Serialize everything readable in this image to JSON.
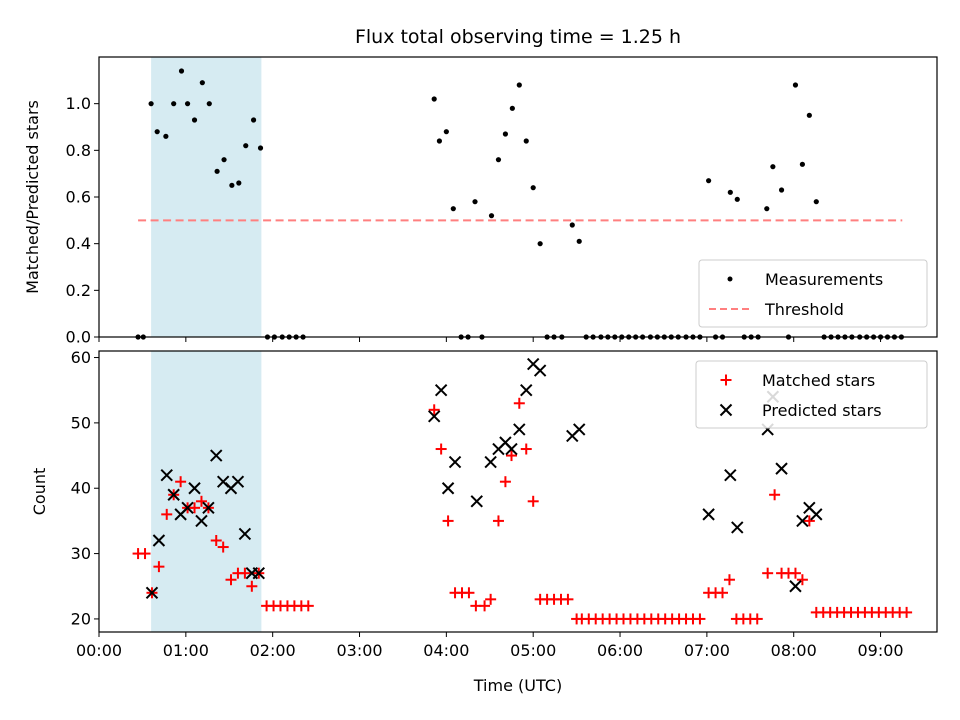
{
  "title": "Flux total observing time = 1.25 h",
  "colors": {
    "measurement": "#000000",
    "threshold": "#ff7f7f",
    "matched": "#ff0000",
    "predicted": "#000000",
    "span_fill": "#add8e6"
  },
  "chart_data": [
    {
      "type": "scatter",
      "ylabel": "Matched/Predicted stars",
      "xlabel": "",
      "xlim": [
        0,
        9.65
      ],
      "ylim": [
        0,
        1.2
      ],
      "yticks": [
        0,
        0.2,
        0.4,
        0.6,
        0.8,
        1.0
      ],
      "ytick_labels": [
        "0.0",
        "0.2",
        "0.4",
        "0.6",
        "0.8",
        "1.0"
      ],
      "shaded_span_x": [
        0.6,
        1.87
      ],
      "legend_position": "lower-right",
      "legend": [
        {
          "label": "Measurements",
          "marker": "dot"
        },
        {
          "label": "Threshold",
          "marker": "dashed-line"
        }
      ],
      "threshold": {
        "y": 0.5,
        "x_range": [
          0.45,
          9.25
        ]
      },
      "measurements": {
        "x": [
          0.45,
          0.51,
          0.6,
          0.67,
          0.77,
          0.86,
          0.95,
          1.02,
          1.1,
          1.19,
          1.27,
          1.36,
          1.44,
          1.53,
          1.61,
          1.69,
          1.78,
          1.86,
          1.94,
          2.02,
          2.11,
          2.19,
          2.27,
          2.35,
          3.86,
          3.92,
          4.0,
          4.08,
          4.17,
          4.25,
          4.33,
          4.41,
          4.52,
          4.6,
          4.68,
          4.76,
          4.84,
          4.92,
          5.0,
          5.08,
          5.16,
          5.24,
          5.33,
          5.45,
          5.53,
          5.61,
          5.69,
          5.78,
          5.86,
          5.94,
          6.02,
          6.1,
          6.18,
          6.26,
          6.35,
          6.43,
          6.51,
          6.59,
          6.67,
          6.76,
          6.84,
          6.92,
          7.02,
          7.1,
          7.18,
          7.27,
          7.35,
          7.43,
          7.51,
          7.59,
          7.69,
          7.76,
          7.86,
          7.94,
          8.02,
          8.1,
          8.18,
          8.26,
          8.35,
          8.43,
          8.51,
          8.59,
          8.67,
          8.76,
          8.84,
          8.92,
          9.0,
          9.08,
          9.16,
          9.24
        ],
        "y": [
          0,
          0,
          1.0,
          0.88,
          0.86,
          1.0,
          1.14,
          1.0,
          0.93,
          1.09,
          1.0,
          0.71,
          0.76,
          0.65,
          0.66,
          0.82,
          0.93,
          0.81,
          0,
          0,
          0,
          0,
          0,
          0,
          1.02,
          0.84,
          0.88,
          0.55,
          0,
          0,
          0.58,
          0,
          0.52,
          0.76,
          0.87,
          0.98,
          1.08,
          0.84,
          0.64,
          0.4,
          0,
          0,
          0,
          0.48,
          0.41,
          0,
          0,
          0,
          0,
          0,
          0,
          0,
          0,
          0,
          0,
          0,
          0,
          0,
          0,
          0,
          0,
          0,
          0.67,
          0,
          0,
          0.62,
          0.59,
          0,
          0,
          0,
          0.55,
          0.73,
          0.63,
          0,
          1.08,
          0.74,
          0.95,
          0.58,
          0,
          0,
          0,
          0,
          0,
          0,
          0,
          0,
          0,
          0,
          0,
          0
        ]
      }
    },
    {
      "type": "scatter",
      "ylabel": "Count",
      "xlabel": "Time (UTC)",
      "xlim": [
        0,
        9.65
      ],
      "ylim": [
        18,
        61
      ],
      "yticks": [
        20,
        30,
        40,
        50,
        60
      ],
      "ytick_labels": [
        "20",
        "30",
        "40",
        "50",
        "60"
      ],
      "xticks": [
        0,
        1,
        2,
        3,
        4,
        5,
        6,
        7,
        8,
        9
      ],
      "xtick_labels": [
        "00:00",
        "01:00",
        "02:00",
        "03:00",
        "04:00",
        "05:00",
        "06:00",
        "07:00",
        "08:00",
        "09:00"
      ],
      "shaded_span_x": [
        0.6,
        1.87
      ],
      "legend_position": "upper-right",
      "series": [
        {
          "name": "Matched stars",
          "marker": "plus",
          "x": [
            0.45,
            0.53,
            0.61,
            0.69,
            0.78,
            0.86,
            0.94,
            1.02,
            1.1,
            1.18,
            1.26,
            1.35,
            1.43,
            1.52,
            1.6,
            1.68,
            1.76,
            1.84,
            1.93,
            2.01,
            2.09,
            2.17,
            2.25,
            2.33,
            2.41,
            3.86,
            3.94,
            4.02,
            4.1,
            4.18,
            4.26,
            4.34,
            4.44,
            4.51,
            4.6,
            4.68,
            4.75,
            4.84,
            4.92,
            5.0,
            5.08,
            5.16,
            5.24,
            5.32,
            5.4,
            5.5,
            5.56,
            5.64,
            5.72,
            5.8,
            5.88,
            5.96,
            6.04,
            6.12,
            6.2,
            6.28,
            6.36,
            6.44,
            6.52,
            6.6,
            6.68,
            6.76,
            6.84,
            6.92,
            7.02,
            7.1,
            7.18,
            7.26,
            7.34,
            7.42,
            7.5,
            7.58,
            7.7,
            7.78,
            7.86,
            7.94,
            8.02,
            8.1,
            8.18,
            8.26,
            8.34,
            8.42,
            8.5,
            8.58,
            8.66,
            8.74,
            8.82,
            8.9,
            8.98,
            9.06,
            9.14,
            9.22,
            9.3
          ],
          "y": [
            30,
            30,
            24,
            28,
            36,
            39,
            41,
            37,
            37,
            38,
            37,
            32,
            31,
            26,
            27,
            27,
            25,
            27,
            22,
            22,
            22,
            22,
            22,
            22,
            22,
            52,
            46,
            35,
            24,
            24,
            24,
            22,
            22,
            23,
            35,
            41,
            45,
            53,
            46,
            38,
            23,
            23,
            23,
            23,
            23,
            20,
            20,
            20,
            20,
            20,
            20,
            20,
            20,
            20,
            20,
            20,
            20,
            20,
            20,
            20,
            20,
            20,
            20,
            20,
            24,
            24,
            24,
            26,
            20,
            20,
            20,
            20,
            27,
            39,
            27,
            27,
            27,
            26,
            35,
            21,
            21,
            21,
            21,
            21,
            21,
            21,
            21,
            21,
            21,
            21,
            21,
            21,
            21
          ]
        },
        {
          "name": "Predicted stars",
          "marker": "x",
          "x": [
            0.61,
            0.69,
            0.78,
            0.86,
            0.94,
            1.02,
            1.1,
            1.18,
            1.26,
            1.35,
            1.43,
            1.52,
            1.6,
            1.68,
            1.76,
            1.84,
            3.86,
            3.94,
            4.02,
            4.1,
            4.35,
            4.51,
            4.6,
            4.68,
            4.75,
            4.84,
            4.92,
            5.0,
            5.08,
            5.45,
            5.53,
            7.02,
            7.27,
            7.35,
            7.7,
            7.76,
            7.86,
            8.02,
            8.1,
            8.18,
            8.26
          ],
          "y": [
            24,
            32,
            42,
            39,
            36,
            37,
            40,
            35,
            37,
            45,
            41,
            40,
            41,
            33,
            27,
            27,
            51,
            55,
            40,
            44,
            38,
            44,
            46,
            47,
            46,
            49,
            55,
            59,
            58,
            48,
            49,
            36,
            42,
            34,
            49,
            54,
            43,
            25,
            35,
            37,
            36
          ]
        }
      ]
    }
  ]
}
